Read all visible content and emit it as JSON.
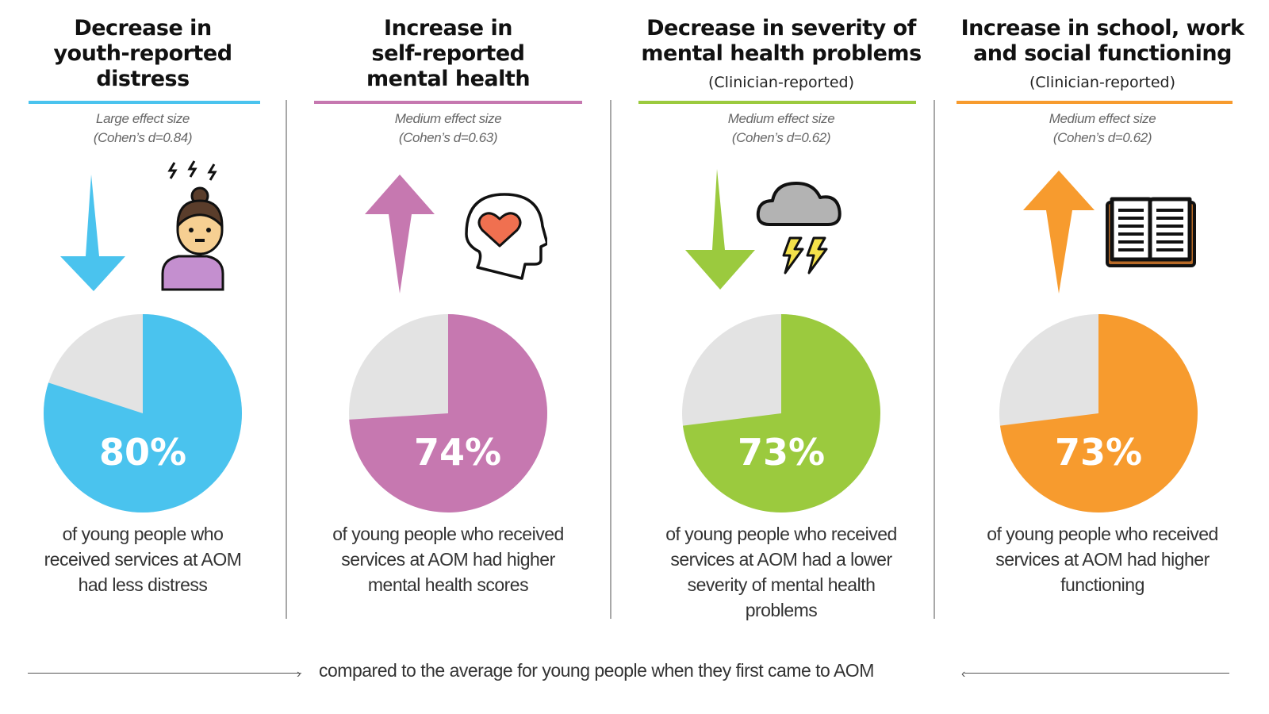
{
  "footer": {
    "text": "compared to the average for young people when they first came to AOM"
  },
  "colors": {
    "blue": "#4ac3ee",
    "pink": "#c678b0",
    "green": "#9bca3e",
    "orange": "#f79b2e",
    "remainder": "#e3e3e3"
  },
  "columns": [
    {
      "title_lines": [
        "Decrease in",
        "youth-reported",
        "distress"
      ],
      "subtitle": "",
      "effect_line1": "Large effect size",
      "effect_line2": "(Cohen’s d=0.84)",
      "direction": "down",
      "icon": "stressed-person-icon",
      "percent_label": "80%",
      "desc_lines": [
        "of young people who",
        "received services at AOM",
        "had less distress"
      ]
    },
    {
      "title_lines": [
        "Increase in",
        "self-reported",
        "mental health"
      ],
      "subtitle": "",
      "effect_line1": "Medium effect size",
      "effect_line2": "(Cohen’s d=0.63)",
      "direction": "up",
      "icon": "head-heart-icon",
      "percent_label": "74%",
      "desc_lines": [
        "of young people who received",
        "services at AOM had higher",
        "mental health scores"
      ]
    },
    {
      "title_lines": [
        "Decrease in severity of",
        "mental health problems"
      ],
      "subtitle": "(Clinician-reported)",
      "effect_line1": "Medium effect size",
      "effect_line2": "(Cohen’s d=0.62)",
      "direction": "down",
      "icon": "storm-cloud-icon",
      "percent_label": "73%",
      "desc_lines": [
        "of young people who received",
        "services at AOM had a lower",
        "severity of mental health",
        "problems"
      ]
    },
    {
      "title_lines": [
        "Increase in school, work",
        "and social functioning"
      ],
      "subtitle": "(Clinician-reported)",
      "effect_line1": "Medium effect size",
      "effect_line2": "(Cohen’s d=0.62)",
      "direction": "up",
      "icon": "open-book-icon",
      "percent_label": "73%",
      "desc_lines": [
        "of young people who received",
        "services at AOM had higher",
        "functioning"
      ]
    }
  ],
  "chart_data": [
    {
      "type": "pie",
      "title": "Decrease in youth-reported distress",
      "categories": [
        "Had less distress",
        "Other"
      ],
      "values": [
        80,
        20
      ],
      "label": "80%"
    },
    {
      "type": "pie",
      "title": "Increase in self-reported mental health",
      "categories": [
        "Higher mental health scores",
        "Other"
      ],
      "values": [
        74,
        26
      ],
      "label": "74%"
    },
    {
      "type": "pie",
      "title": "Decrease in severity of mental health problems (Clinician-reported)",
      "categories": [
        "Lower severity",
        "Other"
      ],
      "values": [
        73,
        27
      ],
      "label": "73%"
    },
    {
      "type": "pie",
      "title": "Increase in school, work and social functioning (Clinician-reported)",
      "categories": [
        "Higher functioning",
        "Other"
      ],
      "values": [
        73,
        27
      ],
      "label": "73%"
    }
  ]
}
